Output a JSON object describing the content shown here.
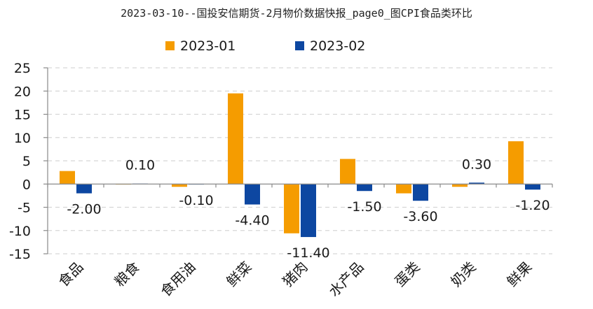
{
  "chart_data": {
    "type": "bar",
    "title": "2023-03-10--国投安信期货-2月物价数据快报_page0_图CPI食品类环比",
    "categories": [
      "食品",
      "粮食",
      "食用油",
      "鲜菜",
      "猪肉",
      "水产品",
      "蛋类",
      "奶类",
      "鲜果"
    ],
    "series": [
      {
        "name": "2023-01",
        "color": "#F59C00",
        "values": [
          2.8,
          0.0,
          -0.6,
          19.5,
          -10.6,
          5.4,
          -2.0,
          -0.6,
          9.2
        ]
      },
      {
        "name": "2023-02",
        "color": "#0D47A1",
        "values": [
          -2.0,
          0.1,
          -0.1,
          -4.4,
          -11.4,
          -1.5,
          -3.6,
          0.3,
          -1.2
        ]
      }
    ],
    "data_labels": [
      "-2.00",
      "0.10",
      "-0.10",
      "-4.40",
      "-11.40",
      "-1.50",
      "-3.60",
      "0.30",
      "-1.20"
    ],
    "ylim": [
      -15,
      25
    ],
    "yticks": [
      25,
      20,
      15,
      10,
      5,
      0,
      -5,
      -10,
      -15
    ],
    "grid": true,
    "legend_position": "top-center",
    "xlabel": "",
    "ylabel": ""
  }
}
